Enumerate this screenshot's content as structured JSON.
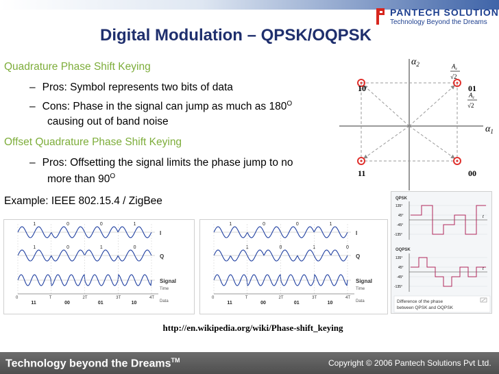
{
  "header": {
    "logo_name": "PANTECH SOLUTIONS",
    "logo_tagline": "Technology Beyond the Dreams"
  },
  "slide": {
    "title": "Digital Modulation – QPSK/OQPSK",
    "qpsk_heading": "Quadrature Phase Shift Keying",
    "qpsk_pros": "Pros:  Symbol represents two bits of data",
    "qpsk_cons_line1": "Cons: Phase in the signal can jump as much as 180",
    "qpsk_cons_sup": "O",
    "qpsk_cons_line2": "causing out of band noise",
    "oqpsk_heading": "Offset Quadrature Phase Shift Keying",
    "oqpsk_pros_line1": "Pros: Offsetting the signal limits the phase jump to no",
    "oqpsk_pros_line2": "more than 90",
    "oqpsk_pros_sup": "O",
    "example": "Example: IEEE 802.15.4 / ZigBee",
    "dash": "–"
  },
  "constellation": {
    "axis_y_label": "α",
    "axis_y_sub": "2",
    "axis_x_label": "α",
    "axis_x_sub": "1",
    "amp_num": "A",
    "amp_num_sub": "c",
    "amp_den": "√2",
    "points": [
      {
        "label": "10",
        "quadrant": "top-left"
      },
      {
        "label": "01",
        "quadrant": "top-right"
      },
      {
        "label": "11",
        "quadrant": "bottom-left"
      },
      {
        "label": "00",
        "quadrant": "bottom-right"
      }
    ]
  },
  "fig_qpsk": {
    "label_i": "I",
    "label_q": "Q",
    "label_signal": "Signal",
    "label_time": "Time",
    "label_data": "Data",
    "bits_i": [
      "1",
      "0",
      "0",
      "1"
    ],
    "bits_q": [
      "1",
      "0",
      "1",
      "0"
    ],
    "ticks": [
      "0",
      "T",
      "2T",
      "3T",
      "4T"
    ],
    "symbols": [
      "11",
      "00",
      "01",
      "10"
    ]
  },
  "fig_oqpsk": {
    "label_i": "I",
    "label_q": "Q",
    "label_signal": "Signal",
    "label_time": "Time",
    "label_data": "Data",
    "bits_i": [
      "1",
      "0",
      "0",
      "1"
    ],
    "bits_q": [
      "1",
      "0",
      "1",
      "0"
    ],
    "ticks": [
      "0",
      "T",
      "2T",
      "3T",
      "4T"
    ],
    "symbols": [
      "11",
      "00",
      "01",
      "10"
    ]
  },
  "fig_phase": {
    "qpsk_label": "QPSK",
    "oqpsk_label": "OQPSK",
    "t_label": "t",
    "y_ticks": [
      "135°",
      "45°",
      "-45°",
      "-135°"
    ],
    "caption_line1": "Difference of the phase",
    "caption_line2": "between QPSK and OQPSK"
  },
  "source_url": "http://en.wikipedia.org/wiki/Phase-shift_keying",
  "footer": {
    "tagline": "Technology beyond the Dreams",
    "tm": "TM",
    "copyright": "Copyright © 2006 Pantech Solutions Pvt Ltd."
  },
  "colors": {
    "title": "#1f2f6d",
    "heading_green": "#7dad3a",
    "constellation_point": "#e0312d",
    "footer_bg": "#5a5a5a"
  }
}
